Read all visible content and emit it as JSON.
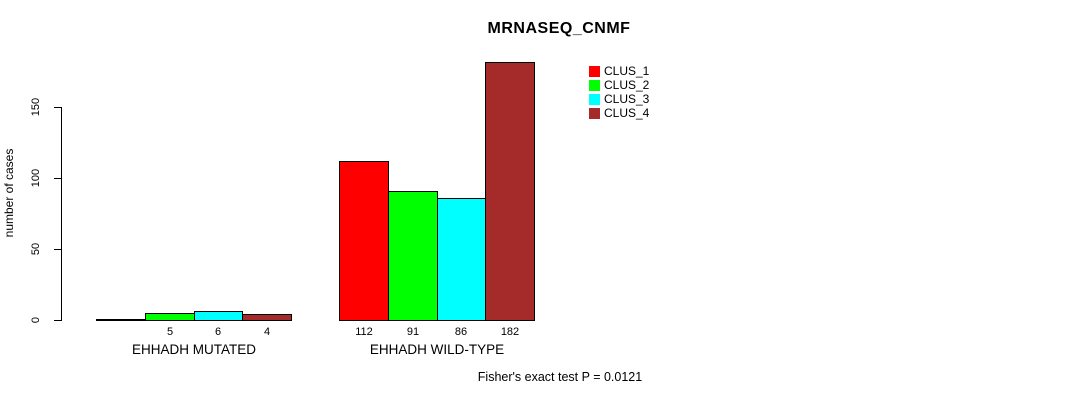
{
  "chart_data": {
    "type": "bar",
    "title": "MRNASEQ_CNMF",
    "xlabel": "",
    "ylabel": "number of cases",
    "ylim": [
      0,
      150
    ],
    "yticks": [
      0,
      50,
      100,
      150
    ],
    "grid": false,
    "legend_position": "top-right-inside",
    "categories": [
      "EHHADH MUTATED",
      "EHHADH WILD-TYPE"
    ],
    "series": [
      {
        "name": "CLUS_1",
        "color": "#FF0000",
        "values": [
          0,
          112
        ]
      },
      {
        "name": "CLUS_2",
        "color": "#00FF00",
        "values": [
          5,
          91
        ]
      },
      {
        "name": "CLUS_3",
        "color": "#00FFFF",
        "values": [
          6,
          86
        ]
      },
      {
        "name": "CLUS_4",
        "color": "#A52A2A",
        "values": [
          4,
          182
        ]
      }
    ],
    "bar_value_labels": [
      [
        "",
        "112"
      ],
      [
        "5",
        "91"
      ],
      [
        "6",
        "86"
      ],
      [
        "4",
        "182"
      ]
    ],
    "annotation": "Fisher's exact test P = 0.0121",
    "axis_color": "#000000",
    "background_color": "#FFFFFF"
  }
}
